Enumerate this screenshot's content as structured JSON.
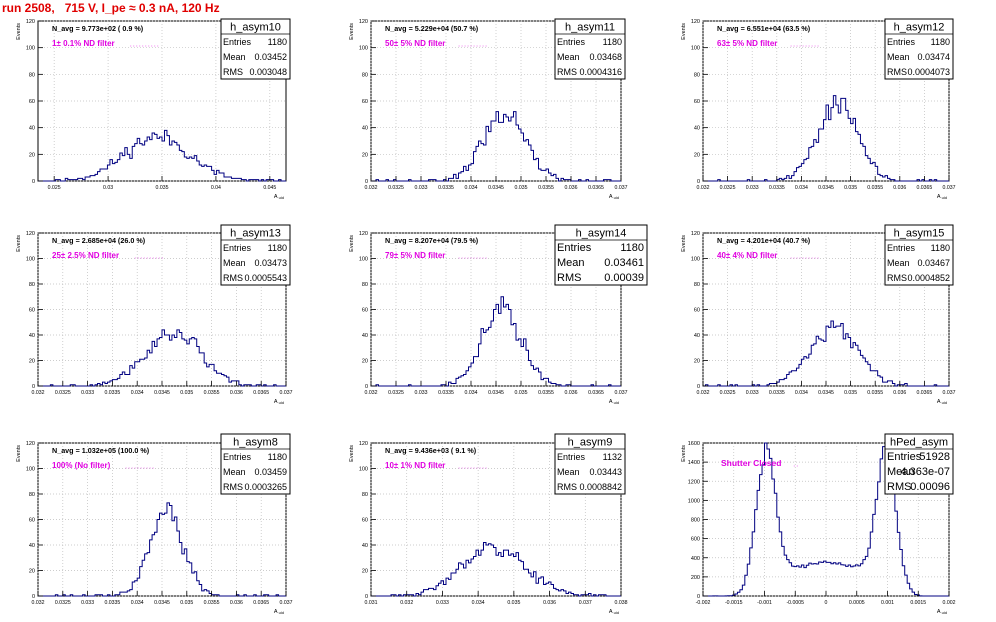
{
  "run_title": "run 2508,   715 V, I_pe ≈ 0.3 nA, 120 Hz",
  "colors": {
    "hist": "#000080",
    "annot": "#e000e0",
    "grid": "#bdbdbd",
    "title": "#e00000"
  },
  "chart_data": [
    {
      "type": "bar",
      "name": "h_asym10",
      "xlabel": "A_uid",
      "ylabel": "Events",
      "xlim": [
        0.0235,
        0.0465
      ],
      "ylim": [
        0,
        120
      ],
      "xticks": [
        0.025,
        0.03,
        0.035,
        0.04,
        0.045
      ],
      "xticklabels": [
        "0.025",
        "0.03",
        "0.035",
        "0.04",
        "0.045"
      ],
      "yticks": [
        0,
        20,
        40,
        60,
        80,
        100,
        120
      ],
      "navg": "N_avg = 9.773e+02 ( 0.9 %)",
      "filter": "1± 0.1% ND filter",
      "stats": {
        "entries": "1180",
        "mean": "0.03452",
        "rms": "0.003048"
      },
      "gauss": {
        "mean": 0.03452,
        "sigma": 0.00305,
        "peak": 33,
        "bins": 100,
        "seed": 11
      }
    },
    {
      "type": "bar",
      "name": "h_asym11",
      "xlabel": "A_uid",
      "ylabel": "Events",
      "xlim": [
        0.032,
        0.037
      ],
      "ylim": [
        0,
        120
      ],
      "xticks": [
        0.032,
        0.0325,
        0.033,
        0.0335,
        0.034,
        0.0345,
        0.035,
        0.0355,
        0.036,
        0.0365,
        0.037
      ],
      "xticklabels": [
        "0.032",
        "0.0325",
        "0.033",
        "0.0335",
        "0.034",
        "0.0345",
        "0.035",
        "0.0355",
        "0.036",
        "0.0365",
        "0.037"
      ],
      "yticks": [
        0,
        20,
        40,
        60,
        80,
        100,
        120
      ],
      "navg": "N_avg = 5.229e+04 (50.7 %)",
      "filter": "50± 5% ND filter",
      "stats": {
        "entries": "1180",
        "mean": "0.03468",
        "rms": "0.0004316"
      },
      "gauss": {
        "mean": 0.03468,
        "sigma": 0.00043,
        "peak": 52,
        "bins": 100,
        "seed": 22
      }
    },
    {
      "type": "bar",
      "name": "h_asym12",
      "xlabel": "A_uid",
      "ylabel": "Events",
      "xlim": [
        0.032,
        0.037
      ],
      "ylim": [
        0,
        120
      ],
      "xticks": [
        0.032,
        0.0325,
        0.033,
        0.0335,
        0.034,
        0.0345,
        0.035,
        0.0355,
        0.036,
        0.0365,
        0.037
      ],
      "xticklabels": [
        "0.032",
        "0.0325",
        "0.033",
        "0.0335",
        "0.034",
        "0.0345",
        "0.035",
        "0.0355",
        "0.036",
        "0.0365",
        "0.037"
      ],
      "yticks": [
        0,
        20,
        40,
        60,
        80,
        100,
        120
      ],
      "navg": "N_avg = 6.551e+04 (63.5 %)",
      "filter": "63± 5% ND filter",
      "stats": {
        "entries": "1180",
        "mean": "0.03474",
        "rms": "0.0004073"
      },
      "gauss": {
        "mean": 0.03474,
        "sigma": 0.00041,
        "peak": 58,
        "bins": 100,
        "seed": 33
      }
    },
    {
      "type": "bar",
      "name": "h_asym13",
      "xlabel": "A_uid",
      "ylabel": "Events",
      "xlim": [
        0.032,
        0.037
      ],
      "ylim": [
        0,
        120
      ],
      "xticks": [
        0.032,
        0.0325,
        0.033,
        0.0335,
        0.034,
        0.0345,
        0.035,
        0.0355,
        0.036,
        0.0365,
        0.037
      ],
      "xticklabels": [
        "0.032",
        "0.0325",
        "0.033",
        "0.0335",
        "0.034",
        "0.0345",
        "0.035",
        "0.0355",
        "0.036",
        "0.0365",
        "0.037"
      ],
      "yticks": [
        0,
        20,
        40,
        60,
        80,
        100,
        120
      ],
      "navg": "N_avg = 2.685e+04 (26.0 %)",
      "filter": "25± 2.5% ND filter",
      "stats": {
        "entries": "1180",
        "mean": "0.03473",
        "rms": "0.0005543"
      },
      "gauss": {
        "mean": 0.03473,
        "sigma": 0.00055,
        "peak": 42,
        "bins": 100,
        "seed": 44
      }
    },
    {
      "type": "bar",
      "name": "h_asym14",
      "xlabel": "A_uid",
      "ylabel": "Events",
      "xlim": [
        0.032,
        0.037
      ],
      "ylim": [
        0,
        120
      ],
      "xticks": [
        0.032,
        0.0325,
        0.033,
        0.0335,
        0.034,
        0.0345,
        0.035,
        0.0355,
        0.036,
        0.0365,
        0.037
      ],
      "xticklabels": [
        "0.032",
        "0.0325",
        "0.033",
        "0.0335",
        "0.034",
        "0.0345",
        "0.035",
        "0.0355",
        "0.036",
        "0.0365",
        "0.037"
      ],
      "yticks": [
        0,
        20,
        40,
        60,
        80,
        100,
        120
      ],
      "navg": "N_avg = 8.207e+04 (79.5 %)",
      "filter": "79± 5% ND filter",
      "stats": {
        "entries": "1180",
        "mean": "0.03461",
        "rms": "0.00039"
      },
      "gauss": {
        "mean": 0.03461,
        "sigma": 0.00039,
        "peak": 60,
        "bins": 100,
        "seed": 55
      }
    },
    {
      "type": "bar",
      "name": "h_asym15",
      "xlabel": "A_uid",
      "ylabel": "Events",
      "xlim": [
        0.032,
        0.037
      ],
      "ylim": [
        0,
        120
      ],
      "xticks": [
        0.032,
        0.0325,
        0.033,
        0.0335,
        0.034,
        0.0345,
        0.035,
        0.0355,
        0.036,
        0.0365,
        0.037
      ],
      "xticklabels": [
        "0.032",
        "0.0325",
        "0.033",
        "0.0335",
        "0.034",
        "0.0345",
        "0.035",
        "0.0355",
        "0.036",
        "0.0365",
        "0.037"
      ],
      "yticks": [
        0,
        20,
        40,
        60,
        80,
        100,
        120
      ],
      "navg": "N_avg = 4.201e+04 (40.7 %)",
      "filter": "40± 4% ND filter",
      "stats": {
        "entries": "1180",
        "mean": "0.03467",
        "rms": "0.0004852"
      },
      "gauss": {
        "mean": 0.03467,
        "sigma": 0.00049,
        "peak": 47,
        "bins": 100,
        "seed": 66
      }
    },
    {
      "type": "bar",
      "name": "h_asym8",
      "xlabel": "A_uid",
      "ylabel": "Events",
      "xlim": [
        0.032,
        0.037
      ],
      "ylim": [
        0,
        120
      ],
      "xticks": [
        0.032,
        0.0325,
        0.033,
        0.0335,
        0.034,
        0.0345,
        0.035,
        0.0355,
        0.036,
        0.0365,
        0.037
      ],
      "xticklabels": [
        "0.032",
        "0.0325",
        "0.033",
        "0.0335",
        "0.034",
        "0.0345",
        "0.035",
        "0.0355",
        "0.036",
        "0.0365",
        "0.037"
      ],
      "yticks": [
        0,
        20,
        40,
        60,
        80,
        100,
        120
      ],
      "navg": "N_avg = 1.032e+05 (100.0 %)",
      "filter": "100% (No filter)",
      "stats": {
        "entries": "1180",
        "mean": "0.03459",
        "rms": "0.0003265"
      },
      "gauss": {
        "mean": 0.03459,
        "sigma": 0.00033,
        "peak": 68,
        "bins": 100,
        "seed": 77
      }
    },
    {
      "type": "bar",
      "name": "h_asym9",
      "xlabel": "A_uid",
      "ylabel": "Events",
      "xlim": [
        0.031,
        0.038
      ],
      "ylim": [
        0,
        120
      ],
      "xticks": [
        0.031,
        0.032,
        0.033,
        0.034,
        0.035,
        0.036,
        0.037,
        0.038
      ],
      "xticklabels": [
        "0.031",
        "0.032",
        "0.033",
        "0.034",
        "0.035",
        "0.036",
        "0.037",
        "0.038"
      ],
      "yticks": [
        0,
        20,
        40,
        60,
        80,
        100,
        120
      ],
      "navg": "N_avg = 9.436e+03 ( 9.1 %)",
      "filter": "10± 1% ND filter",
      "stats": {
        "entries": "1132",
        "mean": "0.03443",
        "rms": "0.0008842"
      },
      "gauss": {
        "mean": 0.03443,
        "sigma": 0.00088,
        "peak": 38,
        "bins": 100,
        "seed": 88
      }
    },
    {
      "type": "bar",
      "name": "hPed_asym",
      "xlabel": "A_uid",
      "ylabel": "Events",
      "xlim": [
        -0.002,
        0.002
      ],
      "ylim": [
        0,
        1600
      ],
      "xticks": [
        -0.002,
        -0.0015,
        -0.001,
        -0.0005,
        0,
        0.0005,
        0.001,
        0.0015,
        0.002
      ],
      "xticklabels": [
        "-0.002",
        "-0.0015",
        "-0.001",
        "-0.0005",
        "0",
        "0.0005",
        "0.001",
        "0.0015",
        "0.002"
      ],
      "yticks": [
        0,
        200,
        400,
        600,
        800,
        1000,
        1200,
        1400,
        1600
      ],
      "navg": "",
      "filter": "Shutter Closed",
      "stats": {
        "entries": "51928",
        "mean": "4.363e-07",
        "rms": "0.00096"
      },
      "bimodal": {
        "centers": [
          -0.00099,
          0.00099
        ],
        "sigma": 0.00016,
        "peak": 1380,
        "floor": 350,
        "bins": 100,
        "seed": 99
      }
    }
  ]
}
